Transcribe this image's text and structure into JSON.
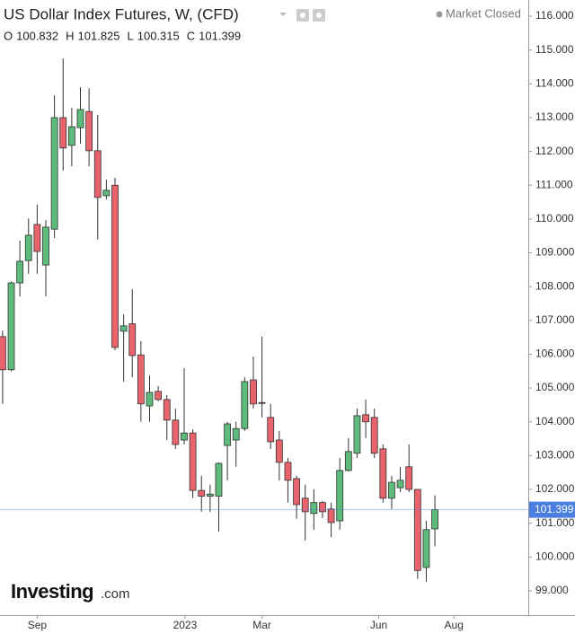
{
  "chart_data": {
    "type": "candlestick",
    "title": "US Dollar Index Futures, W, (CFD)",
    "status": "Market Closed",
    "ohlc_labels": [
      "O",
      "H",
      "L",
      "C"
    ],
    "logo": {
      "name": "Investing",
      "suffix": ".com"
    },
    "up_color": "#5dbb7b",
    "down_color": "#e8636b",
    "price_line_color": "#4a7fe0",
    "grid": false,
    "x": [
      0,
      1,
      2,
      3,
      4,
      5,
      6,
      7,
      8,
      9,
      10,
      11,
      12,
      13,
      14,
      15,
      16,
      17,
      18,
      19,
      20,
      21,
      22,
      23,
      24,
      25,
      26,
      27,
      28,
      29,
      30,
      31,
      32,
      33,
      34,
      35,
      36,
      37,
      38,
      39,
      40,
      41,
      42,
      43,
      44,
      45,
      46,
      47,
      48,
      49,
      50
    ],
    "open": [
      106.52,
      105.54,
      108.11,
      108.77,
      109.84,
      108.64,
      109.7,
      113.0,
      112.18,
      112.7,
      113.18,
      112.02,
      110.69,
      111.0,
      106.68,
      106.9,
      105.98,
      104.47,
      104.9,
      104.66,
      104.05,
      103.46,
      103.67,
      101.97,
      101.8,
      101.8,
      103.3,
      103.46,
      103.8,
      105.24,
      104.57,
      104.13,
      103.46,
      102.8,
      102.32,
      101.74,
      101.29,
      101.61,
      101.42,
      101.07,
      102.56,
      103.07,
      104.21,
      104.13,
      103.2,
      101.74,
      102.05,
      102.67,
      102.0,
      99.69,
      100.832
    ],
    "high": [
      106.7,
      108.16,
      109.36,
      110.02,
      110.42,
      109.97,
      113.66,
      114.75,
      113.29,
      113.9,
      113.87,
      113.08,
      111.17,
      111.22,
      107.18,
      107.93,
      106.39,
      105.38,
      105.06,
      104.79,
      104.39,
      105.59,
      103.78,
      102.4,
      102.14,
      102.8,
      104.0,
      104.0,
      105.32,
      105.93,
      106.52,
      104.53,
      103.73,
      102.93,
      102.4,
      102.14,
      102.0,
      101.66,
      101.61,
      102.93,
      103.52,
      104.39,
      104.66,
      104.39,
      103.33,
      102.4,
      102.67,
      103.33,
      102.0,
      101.07,
      101.825
    ],
    "low": [
      104.53,
      105.5,
      107.71,
      108.38,
      108.38,
      107.71,
      109.44,
      111.43,
      111.56,
      112.23,
      111.56,
      109.39,
      110.58,
      106.12,
      105.19,
      105.32,
      104.0,
      104.0,
      104.61,
      103.46,
      103.2,
      103.33,
      101.74,
      101.34,
      101.34,
      100.75,
      102.27,
      102.67,
      103.73,
      104.39,
      104.13,
      103.2,
      102.27,
      101.61,
      101.13,
      100.49,
      100.81,
      101.15,
      100.59,
      100.81,
      102.53,
      102.93,
      103.52,
      102.93,
      101.61,
      101.42,
      101.92,
      101.92,
      99.35,
      99.27,
      100.315
    ],
    "close": [
      105.54,
      108.11,
      108.75,
      109.52,
      109.04,
      109.76,
      113.0,
      112.1,
      112.73,
      113.24,
      112.02,
      110.64,
      110.85,
      106.2,
      106.84,
      105.96,
      104.53,
      104.87,
      104.66,
      104.05,
      103.33,
      103.67,
      101.97,
      101.8,
      101.86,
      102.77,
      103.94,
      103.8,
      105.19,
      104.53,
      104.55,
      103.41,
      102.8,
      102.27,
      101.55,
      101.34,
      101.61,
      101.34,
      101.02,
      102.56,
      103.12,
      104.18,
      104.0,
      103.07,
      101.74,
      102.21,
      102.27,
      102.0,
      99.6,
      100.81,
      101.399
    ],
    "xlim": [
      -0.3,
      60.8
    ],
    "xticks": [
      {
        "value": 4,
        "label": "Sep"
      },
      {
        "value": 21.1,
        "label": "2023"
      },
      {
        "value": 30,
        "label": "Mar"
      },
      {
        "value": 43.5,
        "label": "Jun"
      },
      {
        "value": 52.2,
        "label": "Aug"
      }
    ],
    "ylim": [
      98.28,
      116.48
    ],
    "yticks": [
      {
        "value": 99,
        "label": "99.000"
      },
      {
        "value": 100,
        "label": "100.000"
      },
      {
        "value": 101,
        "label": "101.000"
      },
      {
        "value": 102,
        "label": "102.000"
      },
      {
        "value": 103,
        "label": "103.000"
      },
      {
        "value": 104,
        "label": "104.000"
      },
      {
        "value": 105,
        "label": "105.000"
      },
      {
        "value": 106,
        "label": "106.000"
      },
      {
        "value": 107,
        "label": "107.000"
      },
      {
        "value": 108,
        "label": "108.000"
      },
      {
        "value": 109,
        "label": "109.000"
      },
      {
        "value": 110,
        "label": "110.000"
      },
      {
        "value": 111,
        "label": "111.000"
      },
      {
        "value": 112,
        "label": "112.000"
      },
      {
        "value": 113,
        "label": "113.000"
      },
      {
        "value": 114,
        "label": "114.000"
      },
      {
        "value": 115,
        "label": "115.000"
      },
      {
        "value": 116,
        "label": "116.000"
      }
    ]
  }
}
